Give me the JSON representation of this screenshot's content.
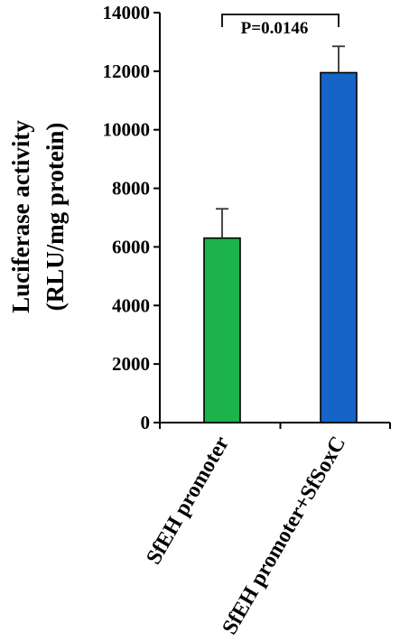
{
  "chart_data": {
    "type": "bar",
    "categories": [
      "SfEH promoter",
      "SfEH promoter+SfSoxC"
    ],
    "values": [
      6300,
      11950
    ],
    "errors": [
      1000,
      900
    ],
    "colors": [
      "#1db34c",
      "#1565c8"
    ],
    "ylabel_line1": "Luciferase activity",
    "ylabel_line2": "(RLU/mg protein)",
    "ylim": [
      0,
      14000
    ],
    "yticks": [
      0,
      2000,
      4000,
      6000,
      8000,
      10000,
      12000,
      14000
    ],
    "annotation": "P=0.0146",
    "grid": false,
    "legend": "none"
  }
}
